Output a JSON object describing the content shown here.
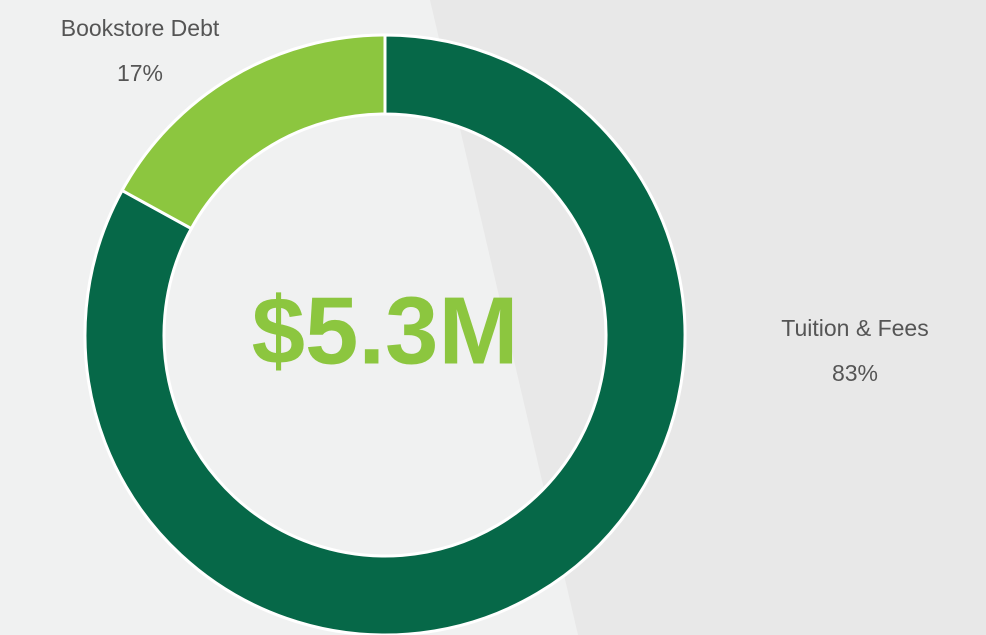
{
  "chart_data": {
    "type": "donut",
    "categories": [
      "Tuition & Fees",
      "Bookstore Debt"
    ],
    "values": [
      83,
      17
    ],
    "value_labels": [
      "83%",
      "17%"
    ],
    "colors": [
      "#066848",
      "#8cc63f"
    ],
    "center_label": "$5.3M"
  }
}
